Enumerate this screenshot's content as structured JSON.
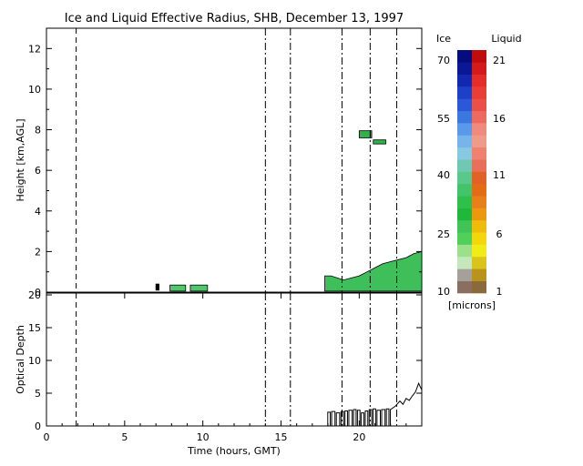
{
  "chart_data": [
    {
      "type": "heatmap",
      "title": "Ice and Liquid Effective Radius, SHB, December 13, 1997",
      "xlabel": "",
      "ylabel": "Height [km,AGL]",
      "xlim": [
        0,
        24
      ],
      "ylim": [
        0,
        13
      ],
      "yticks": [
        "0",
        "2",
        "4",
        "6",
        "8",
        "10",
        "12"
      ],
      "vertical_lines": [
        {
          "x": 1.9,
          "style": "dashed"
        },
        {
          "x": 14.0,
          "style": "dash-dot"
        },
        {
          "x": 15.6,
          "style": "dash-dot"
        },
        {
          "x": 18.9,
          "style": "dash-dot"
        },
        {
          "x": 20.7,
          "style": "dash-dot"
        },
        {
          "x": 22.4,
          "style": "dash-dot"
        }
      ],
      "cloud_regions": [
        {
          "x": [
            7.0,
            7.2
          ],
          "y": [
            0.1,
            0.4
          ],
          "color": "#000000"
        },
        {
          "x": [
            7.9,
            8.9
          ],
          "y": [
            0.05,
            0.35
          ],
          "color": "#4fc76a"
        },
        {
          "x": [
            9.2,
            10.3
          ],
          "y": [
            0.05,
            0.35
          ],
          "color": "#4fc76a"
        },
        {
          "x": [
            20.0,
            20.8
          ],
          "y": [
            7.6,
            7.95
          ],
          "color": "#2fb24a"
        },
        {
          "x": [
            20.9,
            21.7
          ],
          "y": [
            7.3,
            7.5
          ],
          "color": "#2fb24a"
        }
      ],
      "low_cloud_top": {
        "x": [
          17.8,
          18.2,
          18.6,
          19.0,
          19.5,
          20.0,
          20.5,
          21.0,
          21.5,
          22.0,
          22.5,
          23.0,
          23.5,
          24.0
        ],
        "top": [
          0.8,
          0.8,
          0.7,
          0.6,
          0.7,
          0.8,
          1.0,
          1.2,
          1.4,
          1.5,
          1.6,
          1.7,
          1.9,
          2.0
        ],
        "color": "#3fbf5a"
      }
    },
    {
      "type": "line",
      "title": "",
      "xlabel": "Time (hours, GMT)",
      "ylabel": "Optical Depth",
      "xlim": [
        0,
        24
      ],
      "ylim": [
        0,
        20
      ],
      "xticks": [
        "0",
        "5",
        "10",
        "15",
        "20"
      ],
      "yticks": [
        "0",
        "5",
        "10",
        "15",
        "20"
      ],
      "series": [
        {
          "color": "#000000",
          "x": [
            17.8,
            18.0,
            18.3,
            18.6,
            18.9,
            19.1,
            19.4,
            19.7,
            19.9,
            20.2,
            20.4,
            20.7,
            20.9,
            21.2,
            21.5,
            21.8,
            22.0,
            22.3,
            22.6,
            22.8,
            23.0,
            23.2,
            23.4,
            23.6,
            23.8,
            24.0
          ],
          "y": [
            0.0,
            2.1,
            2.2,
            2.0,
            2.2,
            2.3,
            2.4,
            2.5,
            2.4,
            2.0,
            2.3,
            2.5,
            2.6,
            2.4,
            2.5,
            2.6,
            2.5,
            3.0,
            3.8,
            3.3,
            4.2,
            3.9,
            4.6,
            5.2,
            6.5,
            5.5
          ]
        }
      ]
    }
  ],
  "colorbar": {
    "ice_label": "Ice",
    "liquid_label": "Liquid",
    "units_label": "[microns]",
    "ice_ticks": [
      "70",
      "55",
      "40",
      "25",
      "10"
    ],
    "liquid_ticks": [
      "21",
      "16",
      "11",
      "6",
      "1"
    ],
    "ice_colors": [
      "#8a6e62",
      "#a6a09a",
      "#c4e8bc",
      "#9de08c",
      "#4fd05a",
      "#40c458",
      "#1fb83a",
      "#2fc04c",
      "#44c46a",
      "#5ac88a",
      "#6ec8b4",
      "#88c8e0",
      "#78b4ec",
      "#5a98ea",
      "#3a78e0",
      "#2a58d8",
      "#1c40c8",
      "#1228b0",
      "#0a1896",
      "#060c7c"
    ],
    "liquid_colors": [
      "#8a6a3a",
      "#b8941c",
      "#d8c41a",
      "#f2ec16",
      "#f4d60c",
      "#f0bc0a",
      "#ec980e",
      "#e8801a",
      "#e46c16",
      "#e06224",
      "#e8705a",
      "#f08070",
      "#f09a88",
      "#f08a7c",
      "#ec6a5e",
      "#ea5048",
      "#e83e36",
      "#e42c28",
      "#d41a1a",
      "#c00c0c"
    ]
  }
}
